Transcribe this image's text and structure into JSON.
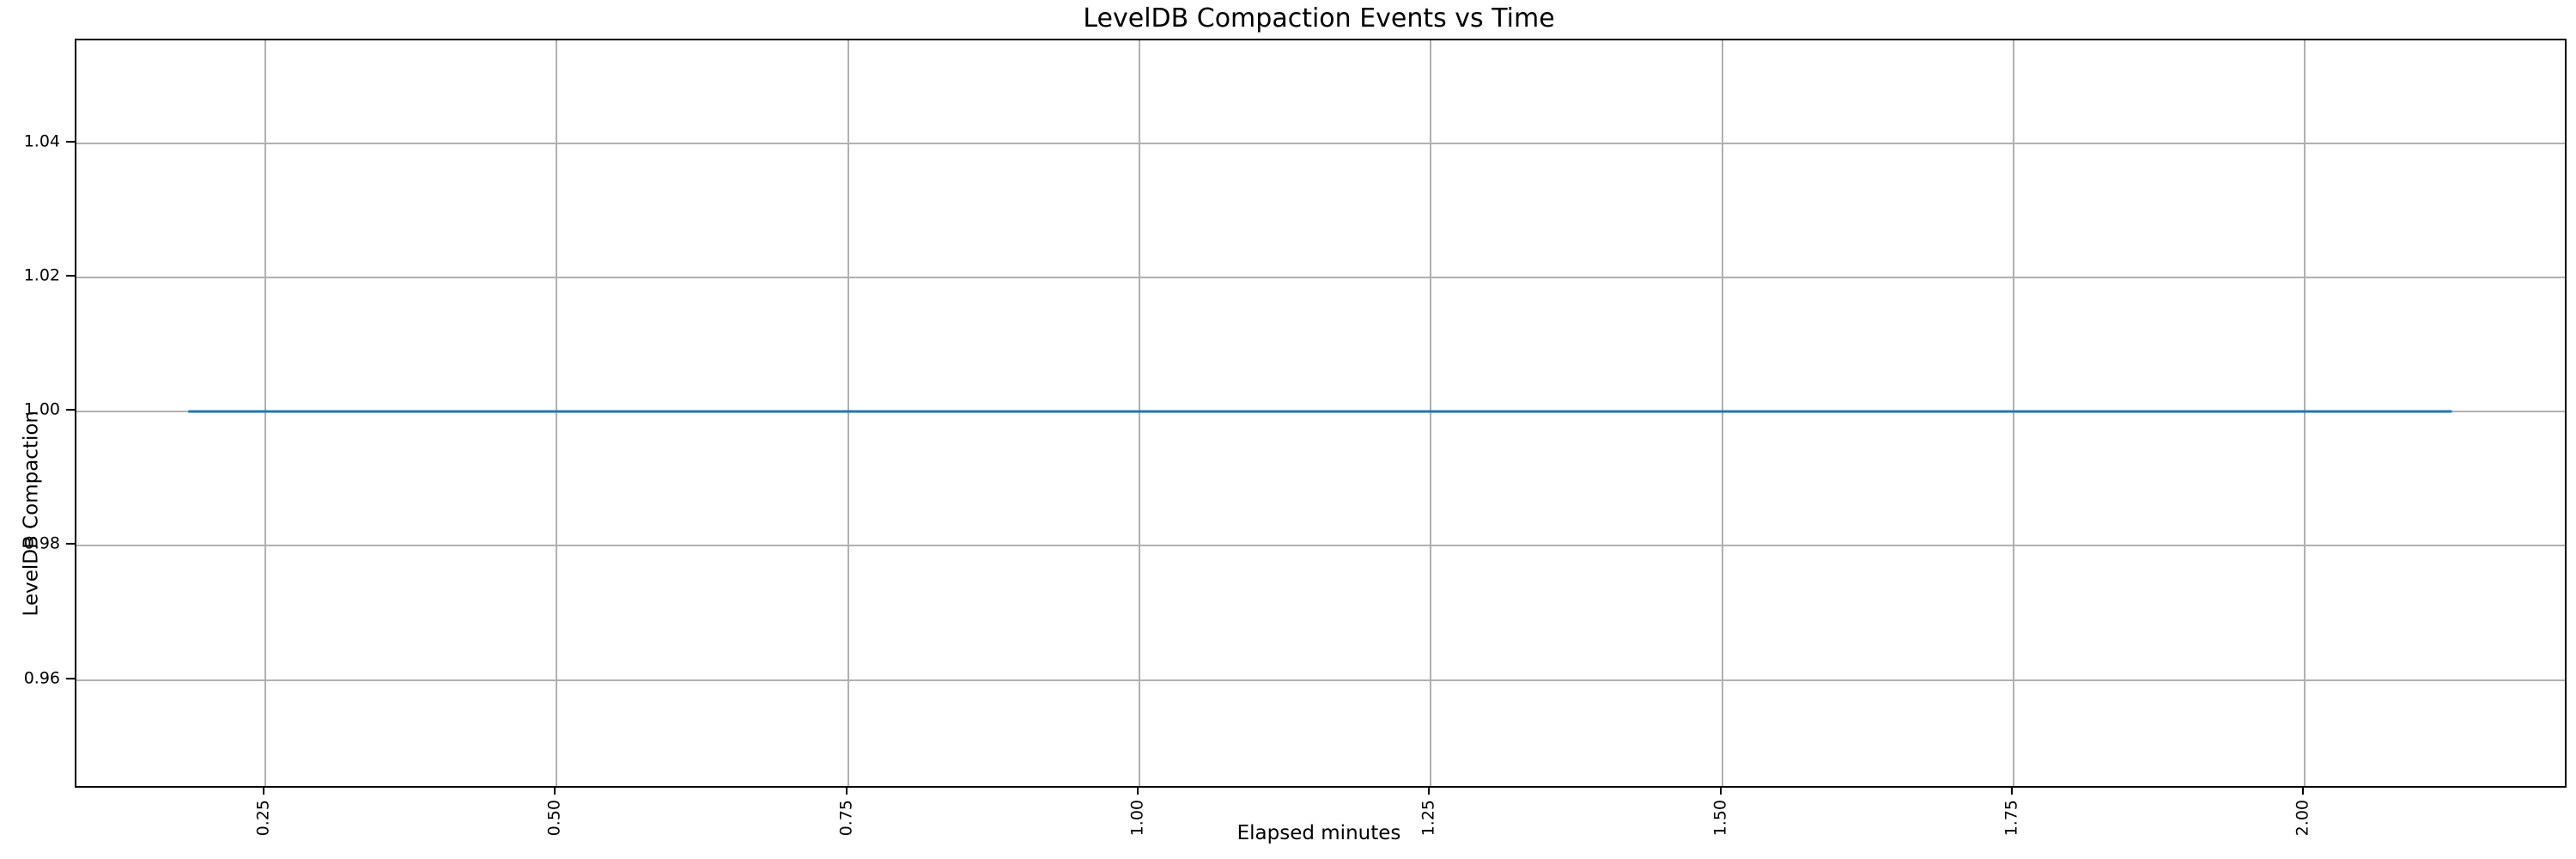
{
  "chart_data": {
    "type": "line",
    "title": "LevelDB Compaction Events vs Time",
    "xlabel": "Elapsed minutes",
    "ylabel": "LevelDB Compaction",
    "series": [
      {
        "name": "LevelDB Compaction",
        "x": [
          0.184,
          2.126
        ],
        "y": [
          1.0,
          1.0
        ],
        "constant_value": 1.0,
        "color": "#1f77b4",
        "linewidth": 3
      }
    ],
    "xlim": [
      0.088,
      2.223
    ],
    "ylim": [
      0.9442,
      1.0553
    ],
    "x_tick_values": [
      0.25,
      0.5,
      0.75,
      1.0,
      1.25,
      1.5,
      1.75,
      2.0
    ],
    "x_tick_labels": [
      "0.25",
      "0.50",
      "0.75",
      "1.00",
      "1.25",
      "1.50",
      "1.75",
      "2.00"
    ],
    "x_tick_rotation": 90,
    "y_tick_values": [
      0.96,
      0.98,
      1.0,
      1.02,
      1.04
    ],
    "y_tick_labels": [
      "0.96",
      "0.98",
      "1.00",
      "1.02",
      "1.04"
    ],
    "grid": true,
    "grid_color": "#b0b0b0",
    "spine_color": "#000000",
    "text_color": "#000000",
    "background_color": "#ffffff",
    "legend": null
  }
}
